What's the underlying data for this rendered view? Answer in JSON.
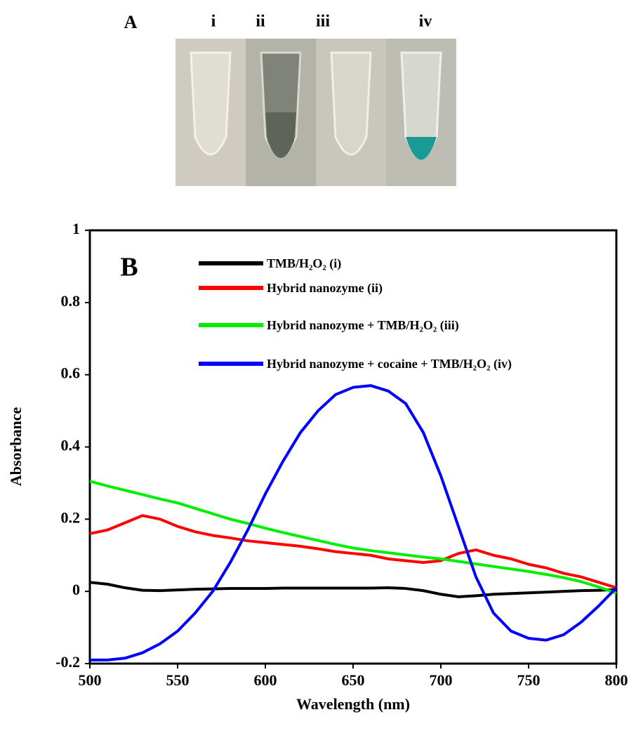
{
  "panel_a": {
    "label": "A",
    "tubes": [
      "i",
      "ii",
      "iii",
      "iv"
    ]
  },
  "chart_data": {
    "type": "line",
    "panel_label": "B",
    "x_label": "Wavelength (nm)",
    "y_label": "Absorbance",
    "x": [
      500,
      510,
      520,
      530,
      540,
      550,
      560,
      570,
      580,
      590,
      600,
      610,
      620,
      630,
      640,
      650,
      660,
      670,
      680,
      690,
      700,
      710,
      720,
      730,
      740,
      750,
      760,
      770,
      780,
      790,
      800
    ],
    "xlim": [
      500,
      800
    ],
    "xticks": [
      500,
      550,
      600,
      650,
      700,
      750,
      800
    ],
    "ylim": [
      -0.2,
      1
    ],
    "yticks": [
      -0.2,
      0,
      0.2,
      0.4,
      0.6,
      0.8,
      1
    ],
    "series": [
      {
        "name": "TMB/H₂O₂ (i)",
        "color": "#000000",
        "values": [
          0.025,
          0.02,
          0.01,
          0.003,
          0.002,
          0.004,
          0.006,
          0.007,
          0.008,
          0.008,
          0.008,
          0.009,
          0.009,
          0.009,
          0.009,
          0.009,
          0.009,
          0.01,
          0.008,
          0.002,
          -0.008,
          -0.015,
          -0.012,
          -0.008,
          -0.006,
          -0.004,
          -0.002,
          0,
          0.002,
          0.003,
          0.005
        ]
      },
      {
        "name": "Hybrid nanozyme (ii)",
        "color": "#ff0000",
        "values": [
          0.16,
          0.17,
          0.19,
          0.21,
          0.2,
          0.18,
          0.165,
          0.155,
          0.148,
          0.14,
          0.135,
          0.13,
          0.125,
          0.118,
          0.11,
          0.105,
          0.1,
          0.09,
          0.085,
          0.08,
          0.085,
          0.105,
          0.115,
          0.1,
          0.09,
          0.075,
          0.065,
          0.05,
          0.04,
          0.025,
          0.01
        ]
      },
      {
        "name": "Hybrid nanozyme + TMB/H₂O₂ (iii)",
        "color": "#00ee00",
        "values": [
          0.305,
          0.292,
          0.28,
          0.268,
          0.256,
          0.245,
          0.23,
          0.215,
          0.2,
          0.188,
          0.175,
          0.163,
          0.152,
          0.141,
          0.13,
          0.12,
          0.113,
          0.107,
          0.101,
          0.095,
          0.09,
          0.083,
          0.076,
          0.069,
          0.062,
          0.055,
          0.047,
          0.038,
          0.027,
          0.012,
          -0.005
        ]
      },
      {
        "name": "Hybrid nanozyme + cocaine + TMB/H₂O₂ (iv)",
        "color": "#0000ff",
        "values": [
          -0.19,
          -0.19,
          -0.185,
          -0.17,
          -0.145,
          -0.11,
          -0.06,
          0,
          0.08,
          0.17,
          0.27,
          0.36,
          0.44,
          0.5,
          0.545,
          0.565,
          0.57,
          0.555,
          0.52,
          0.44,
          0.32,
          0.18,
          0.04,
          -0.06,
          -0.11,
          -0.13,
          -0.135,
          -0.12,
          -0.085,
          -0.04,
          0.01
        ]
      }
    ]
  }
}
